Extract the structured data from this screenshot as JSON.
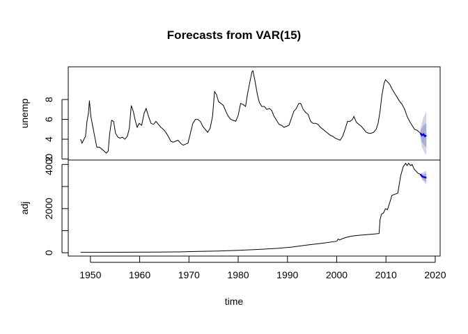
{
  "chart_data": {
    "type": "line",
    "title": "Forecasts from VAR(15)",
    "xlabel": "time",
    "xlim": [
      1945.5,
      2021
    ],
    "x_ticks": [
      1950,
      1960,
      1970,
      1980,
      1990,
      2000,
      2010,
      2020
    ],
    "colors": {
      "history": "#000000",
      "forecast": "#0000ff",
      "band_outer": "#d0d4e6",
      "band_inner": "#a9afcf"
    },
    "panels": [
      {
        "name": "unemp",
        "ylabel": "unemp",
        "ylim": [
          1.9,
          11.3
        ],
        "y_ticks": [
          2,
          4,
          6,
          8
        ],
        "history": [
          [
            1948.0,
            4.0
          ],
          [
            1948.3,
            3.6
          ],
          [
            1948.6,
            3.9
          ],
          [
            1949.0,
            4.3
          ],
          [
            1949.3,
            5.8
          ],
          [
            1949.6,
            6.6
          ],
          [
            1949.8,
            7.9
          ],
          [
            1950.1,
            6.3
          ],
          [
            1950.5,
            5.2
          ],
          [
            1950.9,
            4.2
          ],
          [
            1951.3,
            3.2
          ],
          [
            1951.8,
            3.2
          ],
          [
            1952.3,
            3.0
          ],
          [
            1952.8,
            2.8
          ],
          [
            1953.2,
            2.6
          ],
          [
            1953.6,
            2.8
          ],
          [
            1953.9,
            4.5
          ],
          [
            1954.3,
            5.9
          ],
          [
            1954.7,
            5.8
          ],
          [
            1955.1,
            4.6
          ],
          [
            1955.6,
            4.2
          ],
          [
            1956.0,
            4.1
          ],
          [
            1956.5,
            4.2
          ],
          [
            1957.0,
            4.0
          ],
          [
            1957.5,
            4.3
          ],
          [
            1957.9,
            5.1
          ],
          [
            1958.3,
            7.4
          ],
          [
            1958.7,
            6.8
          ],
          [
            1959.1,
            5.9
          ],
          [
            1959.5,
            5.2
          ],
          [
            1959.9,
            5.6
          ],
          [
            1960.4,
            5.4
          ],
          [
            1960.9,
            6.6
          ],
          [
            1961.3,
            7.1
          ],
          [
            1961.8,
            6.3
          ],
          [
            1962.3,
            5.6
          ],
          [
            1962.8,
            5.5
          ],
          [
            1963.3,
            5.8
          ],
          [
            1963.8,
            5.5
          ],
          [
            1964.3,
            5.2
          ],
          [
            1964.8,
            5.0
          ],
          [
            1965.3,
            4.7
          ],
          [
            1965.8,
            4.3
          ],
          [
            1966.3,
            3.8
          ],
          [
            1966.8,
            3.7
          ],
          [
            1967.3,
            3.8
          ],
          [
            1967.8,
            3.9
          ],
          [
            1968.3,
            3.6
          ],
          [
            1968.8,
            3.4
          ],
          [
            1969.3,
            3.5
          ],
          [
            1969.8,
            3.6
          ],
          [
            1970.3,
            4.6
          ],
          [
            1970.8,
            5.6
          ],
          [
            1971.3,
            6.0
          ],
          [
            1971.8,
            6.0
          ],
          [
            1972.3,
            5.8
          ],
          [
            1972.8,
            5.3
          ],
          [
            1973.3,
            5.0
          ],
          [
            1973.8,
            4.7
          ],
          [
            1974.3,
            5.1
          ],
          [
            1974.8,
            6.3
          ],
          [
            1975.2,
            8.8
          ],
          [
            1975.6,
            8.5
          ],
          [
            1976.0,
            7.8
          ],
          [
            1976.5,
            7.6
          ],
          [
            1977.0,
            7.4
          ],
          [
            1977.5,
            6.8
          ],
          [
            1978.0,
            6.3
          ],
          [
            1978.5,
            6.0
          ],
          [
            1979.0,
            5.9
          ],
          [
            1979.5,
            5.8
          ],
          [
            1980.0,
            6.4
          ],
          [
            1980.5,
            7.6
          ],
          [
            1981.0,
            7.5
          ],
          [
            1981.5,
            7.3
          ],
          [
            1981.9,
            8.6
          ],
          [
            1982.3,
            9.6
          ],
          [
            1982.8,
            10.8
          ],
          [
            1983.0,
            10.9
          ],
          [
            1983.4,
            9.9
          ],
          [
            1983.9,
            8.5
          ],
          [
            1984.3,
            7.7
          ],
          [
            1984.8,
            7.3
          ],
          [
            1985.3,
            7.3
          ],
          [
            1985.8,
            7.0
          ],
          [
            1986.3,
            7.1
          ],
          [
            1986.8,
            6.9
          ],
          [
            1987.3,
            6.3
          ],
          [
            1987.8,
            5.9
          ],
          [
            1988.3,
            5.5
          ],
          [
            1988.8,
            5.4
          ],
          [
            1989.3,
            5.2
          ],
          [
            1989.8,
            5.3
          ],
          [
            1990.3,
            5.4
          ],
          [
            1990.8,
            6.1
          ],
          [
            1991.3,
            6.8
          ],
          [
            1991.8,
            7.1
          ],
          [
            1992.3,
            7.6
          ],
          [
            1992.7,
            7.6
          ],
          [
            1993.2,
            7.0
          ],
          [
            1993.7,
            6.7
          ],
          [
            1994.2,
            6.5
          ],
          [
            1994.7,
            5.8
          ],
          [
            1995.2,
            5.6
          ],
          [
            1995.7,
            5.6
          ],
          [
            1996.2,
            5.5
          ],
          [
            1996.7,
            5.2
          ],
          [
            1997.2,
            5.0
          ],
          [
            1997.7,
            4.8
          ],
          [
            1998.2,
            4.6
          ],
          [
            1998.7,
            4.4
          ],
          [
            1999.2,
            4.3
          ],
          [
            1999.7,
            4.1
          ],
          [
            2000.2,
            4.0
          ],
          [
            2000.7,
            3.9
          ],
          [
            2001.2,
            4.3
          ],
          [
            2001.7,
            5.0
          ],
          [
            2002.2,
            5.8
          ],
          [
            2002.7,
            5.8
          ],
          [
            2003.2,
            6.0
          ],
          [
            2003.5,
            6.3
          ],
          [
            2004.0,
            5.7
          ],
          [
            2004.5,
            5.5
          ],
          [
            2005.0,
            5.3
          ],
          [
            2005.5,
            5.0
          ],
          [
            2006.0,
            4.7
          ],
          [
            2006.5,
            4.6
          ],
          [
            2007.0,
            4.6
          ],
          [
            2007.5,
            4.7
          ],
          [
            2008.0,
            5.0
          ],
          [
            2008.4,
            5.6
          ],
          [
            2008.8,
            6.8
          ],
          [
            2009.2,
            8.5
          ],
          [
            2009.6,
            9.6
          ],
          [
            2009.9,
            10.0
          ],
          [
            2010.3,
            9.8
          ],
          [
            2010.8,
            9.5
          ],
          [
            2011.3,
            9.0
          ],
          [
            2011.8,
            8.6
          ],
          [
            2012.3,
            8.2
          ],
          [
            2012.8,
            7.8
          ],
          [
            2013.3,
            7.5
          ],
          [
            2013.8,
            7.0
          ],
          [
            2014.3,
            6.3
          ],
          [
            2014.8,
            5.8
          ],
          [
            2015.3,
            5.4
          ],
          [
            2015.8,
            5.0
          ],
          [
            2016.3,
            4.9
          ],
          [
            2016.8,
            4.7
          ],
          [
            2017.0,
            4.6
          ]
        ],
        "forecast": {
          "x": [
            2017.0,
            2017.3,
            2017.6,
            2017.9,
            2018.2
          ],
          "mean": [
            4.6,
            4.4,
            4.5,
            4.3,
            4.4
          ],
          "lo80": [
            4.3,
            3.7,
            3.5,
            3.3,
            3.2
          ],
          "hi80": [
            4.9,
            5.1,
            5.4,
            5.5,
            5.6
          ],
          "lo95": [
            4.1,
            3.2,
            2.9,
            2.6,
            2.4
          ],
          "hi95": [
            5.1,
            5.7,
            6.2,
            6.5,
            6.8
          ]
        }
      },
      {
        "name": "adj",
        "ylabel": "adj",
        "ylim": [
          -150,
          4200
        ],
        "y_ticks": [
          0,
          1000,
          2000,
          3000,
          4000
        ],
        "y_tick_labels": [
          "0",
          "",
          "2000",
          "",
          "4000"
        ],
        "history": [
          [
            1948.0,
            20
          ],
          [
            1952.0,
            20
          ],
          [
            1956.0,
            22
          ],
          [
            1960.0,
            25
          ],
          [
            1964.0,
            30
          ],
          [
            1968.0,
            40
          ],
          [
            1972.0,
            60
          ],
          [
            1976.0,
            80
          ],
          [
            1980.0,
            110
          ],
          [
            1984.0,
            150
          ],
          [
            1988.0,
            200
          ],
          [
            1991.0,
            260
          ],
          [
            1994.0,
            350
          ],
          [
            1997.0,
            430
          ],
          [
            2000.0,
            520
          ],
          [
            2000.3,
            620
          ],
          [
            2000.6,
            580
          ],
          [
            2001.2,
            640
          ],
          [
            2002.0,
            700
          ],
          [
            2003.0,
            750
          ],
          [
            2004.0,
            780
          ],
          [
            2005.0,
            800
          ],
          [
            2006.0,
            820
          ],
          [
            2007.0,
            840
          ],
          [
            2008.0,
            860
          ],
          [
            2008.6,
            870
          ],
          [
            2008.8,
            1500
          ],
          [
            2009.1,
            1750
          ],
          [
            2009.5,
            1800
          ],
          [
            2009.9,
            2000
          ],
          [
            2010.3,
            1950
          ],
          [
            2010.8,
            2300
          ],
          [
            2011.2,
            2600
          ],
          [
            2011.8,
            2650
          ],
          [
            2012.4,
            2700
          ],
          [
            2013.0,
            3500
          ],
          [
            2013.5,
            3900
          ],
          [
            2014.0,
            4050
          ],
          [
            2014.3,
            3950
          ],
          [
            2014.6,
            4050
          ],
          [
            2015.0,
            3950
          ],
          [
            2015.3,
            4000
          ],
          [
            2015.7,
            3800
          ],
          [
            2016.1,
            3700
          ],
          [
            2016.5,
            3600
          ],
          [
            2017.0,
            3550
          ]
        ],
        "forecast": {
          "x": [
            2017.0,
            2017.4,
            2017.8,
            2018.2
          ],
          "mean": [
            3550,
            3450,
            3420,
            3400
          ],
          "lo80": [
            3520,
            3350,
            3270,
            3220
          ],
          "hi80": [
            3580,
            3550,
            3580,
            3600
          ],
          "lo95": [
            3500,
            3280,
            3180,
            3110
          ],
          "hi95": [
            3600,
            3630,
            3680,
            3720
          ]
        }
      }
    ]
  }
}
